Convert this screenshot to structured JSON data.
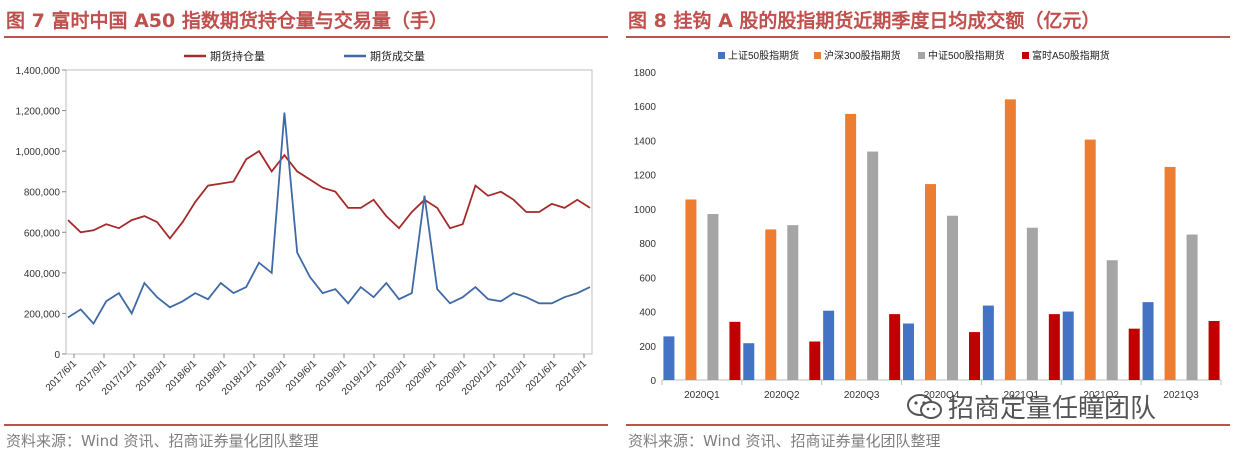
{
  "left": {
    "title": "图 7 富时中国 A50 指数期货持仓量与交易量（手）",
    "source": "资料来源：Wind 资讯、招商证券量化团队整理"
  },
  "right": {
    "title": "图 8  挂钩 A 股的股指期货近期季度日均成交额（亿元）",
    "source": "资料来源：Wind 资讯、招商证券量化团队整理"
  },
  "watermark": {
    "text": "招商定量任瞳团队",
    "icon": "wechat-icon"
  },
  "colors": {
    "accent": "#c0504d",
    "oi": "#a52a2a",
    "vol": "#3f6aa6",
    "s1": "#4472c4",
    "s2": "#ed7d31",
    "s3": "#a5a5a5",
    "s4": "#c00000"
  },
  "chart_data": [
    {
      "type": "line",
      "title": "",
      "xlabel": "",
      "ylabel": "",
      "ylim": [
        0,
        1400000
      ],
      "yticks": [
        0,
        200000,
        400000,
        600000,
        800000,
        1000000,
        1200000,
        1400000
      ],
      "ytick_labels": [
        "0",
        "200,000",
        "400,000",
        "600,000",
        "800,000",
        "1,000,000",
        "1,200,000",
        "1,400,000"
      ],
      "xtick_labels": [
        "2017/6/1",
        "2017/9/1",
        "2017/12/1",
        "2018/3/1",
        "2018/6/1",
        "2018/9/1",
        "2018/12/1",
        "2019/3/1",
        "2019/6/1",
        "2019/9/1",
        "2019/12/1",
        "2020/3/1",
        "2020/6/1",
        "2020/9/1",
        "2020/12/1",
        "2021/3/1",
        "2021/6/1",
        "2021/9/1"
      ],
      "legend_position": "top-center",
      "grid": false,
      "series": [
        {
          "name": "期货持仓量",
          "color": "#a52a2a",
          "values": [
            660000,
            600000,
            610000,
            640000,
            620000,
            660000,
            680000,
            650000,
            570000,
            650000,
            750000,
            830000,
            840000,
            850000,
            960000,
            1000000,
            900000,
            980000,
            900000,
            860000,
            820000,
            800000,
            720000,
            720000,
            760000,
            680000,
            620000,
            700000,
            760000,
            720000,
            620000,
            640000,
            830000,
            780000,
            800000,
            760000,
            700000,
            700000,
            740000,
            720000,
            760000,
            720000
          ]
        },
        {
          "name": "期货成交量",
          "color": "#3f6aa6",
          "values": [
            180000,
            220000,
            150000,
            260000,
            300000,
            200000,
            350000,
            280000,
            230000,
            260000,
            300000,
            270000,
            350000,
            300000,
            330000,
            450000,
            400000,
            1190000,
            500000,
            380000,
            300000,
            320000,
            250000,
            330000,
            280000,
            350000,
            270000,
            300000,
            780000,
            320000,
            250000,
            280000,
            330000,
            270000,
            260000,
            300000,
            280000,
            250000,
            250000,
            280000,
            300000,
            330000
          ]
        }
      ]
    },
    {
      "type": "bar",
      "title": "",
      "xlabel": "",
      "ylabel": "",
      "ylim": [
        0,
        1800
      ],
      "yticks": [
        0,
        200,
        400,
        600,
        800,
        1000,
        1200,
        1400,
        1600,
        1800
      ],
      "categories": [
        "2020Q1",
        "2020Q2",
        "2020Q3",
        "2020Q4",
        "2021Q1",
        "2021Q2",
        "2021Q3"
      ],
      "legend_position": "top-center",
      "grid": false,
      "series": [
        {
          "name": "上证50股指期货",
          "color": "#4472c4",
          "values": [
            255,
            215,
            405,
            330,
            435,
            400,
            455
          ]
        },
        {
          "name": "沪深300股指期货",
          "color": "#ed7d31",
          "values": [
            1055,
            880,
            1555,
            1145,
            1640,
            1405,
            1245
          ]
        },
        {
          "name": "中证500股指期货",
          "color": "#a5a5a5",
          "values": [
            970,
            905,
            1335,
            960,
            890,
            700,
            850
          ]
        },
        {
          "name": "富时A50股指期货",
          "color": "#c00000",
          "values": [
            340,
            225,
            385,
            280,
            385,
            300,
            345
          ]
        }
      ]
    }
  ]
}
